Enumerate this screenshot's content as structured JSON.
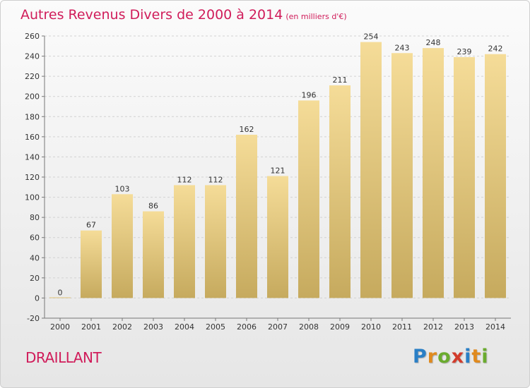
{
  "header": {
    "title": "Autres Revenus Divers de 2000 à 2014",
    "subtitle": "(en milliers d'€)"
  },
  "footer": {
    "commune": "DRAILLANT",
    "logo_text": "Proxiti",
    "logo_letters": [
      {
        "ch": "P",
        "color": "#2a7fc6"
      },
      {
        "ch": "r",
        "color": "#e08a1e"
      },
      {
        "ch": "o",
        "color": "#6aab2e"
      },
      {
        "ch": "x",
        "color": "#d23b2b"
      },
      {
        "ch": "i",
        "color": "#2a7fc6"
      },
      {
        "ch": "t",
        "color": "#e08a1e"
      },
      {
        "ch": "i",
        "color": "#6aab2e"
      }
    ]
  },
  "chart_data": {
    "type": "bar",
    "title": "Autres Revenus Divers de 2000 à 2014",
    "subtitle": "(en milliers d'€)",
    "categories": [
      "2000",
      "2001",
      "2002",
      "2003",
      "2004",
      "2005",
      "2006",
      "2007",
      "2008",
      "2009",
      "2010",
      "2011",
      "2012",
      "2013",
      "2014"
    ],
    "values": [
      0,
      67,
      103,
      86,
      112,
      112,
      162,
      121,
      196,
      211,
      254,
      243,
      248,
      239,
      242
    ],
    "ylim": [
      -20,
      260
    ],
    "yticks": [
      -20,
      0,
      20,
      40,
      60,
      80,
      100,
      120,
      140,
      160,
      180,
      200,
      220,
      240,
      260
    ],
    "grid": true,
    "bar_color_top": "#f5dc98",
    "bar_color_bottom": "#c6aa5e"
  }
}
